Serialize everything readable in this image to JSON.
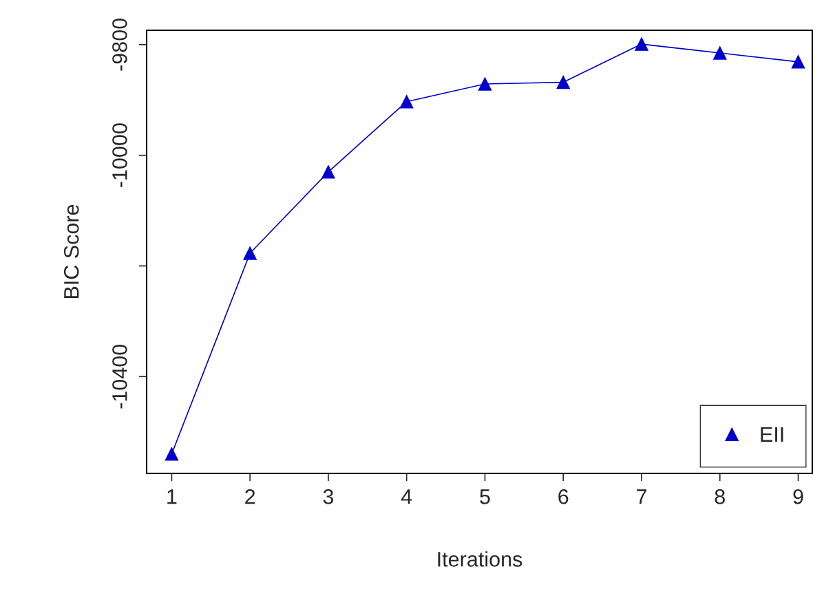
{
  "chart_data": {
    "type": "line",
    "xlabel": "Iterations",
    "ylabel": "BIC Score",
    "x": [
      1,
      2,
      3,
      4,
      5,
      6,
      7,
      8,
      9
    ],
    "series": [
      {
        "name": "EII",
        "color": "#0000cd",
        "values": [
          -10540,
          -10177,
          -10030,
          -9903,
          -9871,
          -9868,
          -9799,
          -9815,
          -9831
        ]
      }
    ],
    "xlim": [
      0.68,
      9.18
    ],
    "xticks": [
      1,
      2,
      3,
      4,
      5,
      6,
      7,
      8,
      9
    ],
    "ylim": [
      -10575,
      -9774
    ],
    "yticks": [
      -10400,
      {
        "value": -10200,
        "label": null
      },
      -10000,
      -9800
    ],
    "marker": "triangle",
    "line_style": "solid",
    "legend": "bottom right",
    "grid": false
  }
}
